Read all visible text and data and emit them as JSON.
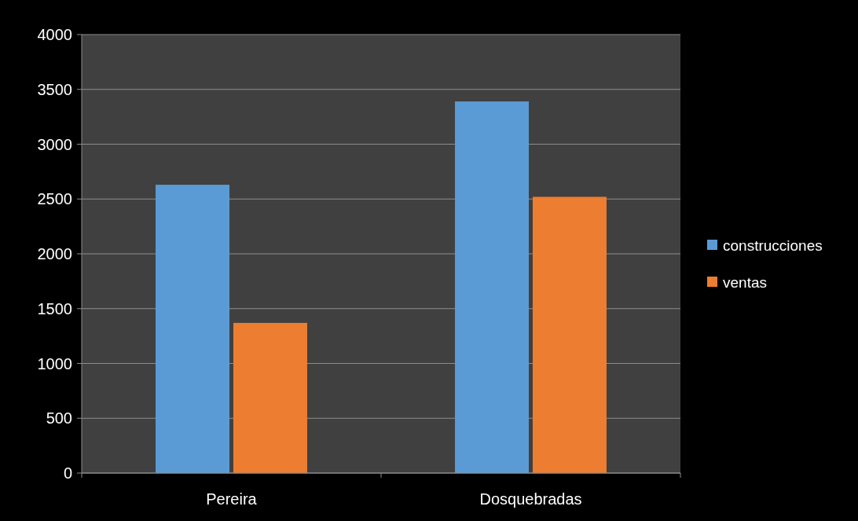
{
  "chart_data": {
    "type": "bar",
    "categories": [
      "Pereira",
      "Dosquebradas"
    ],
    "series": [
      {
        "name": "construcciones",
        "color": "#5b9bd5",
        "values": [
          2630,
          3390
        ]
      },
      {
        "name": "ventas",
        "color": "#ed7d31",
        "values": [
          1370,
          2520
        ]
      }
    ],
    "ylim": [
      0,
      4000
    ],
    "yticks": [
      0,
      500,
      1000,
      1500,
      2000,
      2500,
      3000,
      3500,
      4000
    ],
    "grid": "y",
    "legend": "right"
  }
}
